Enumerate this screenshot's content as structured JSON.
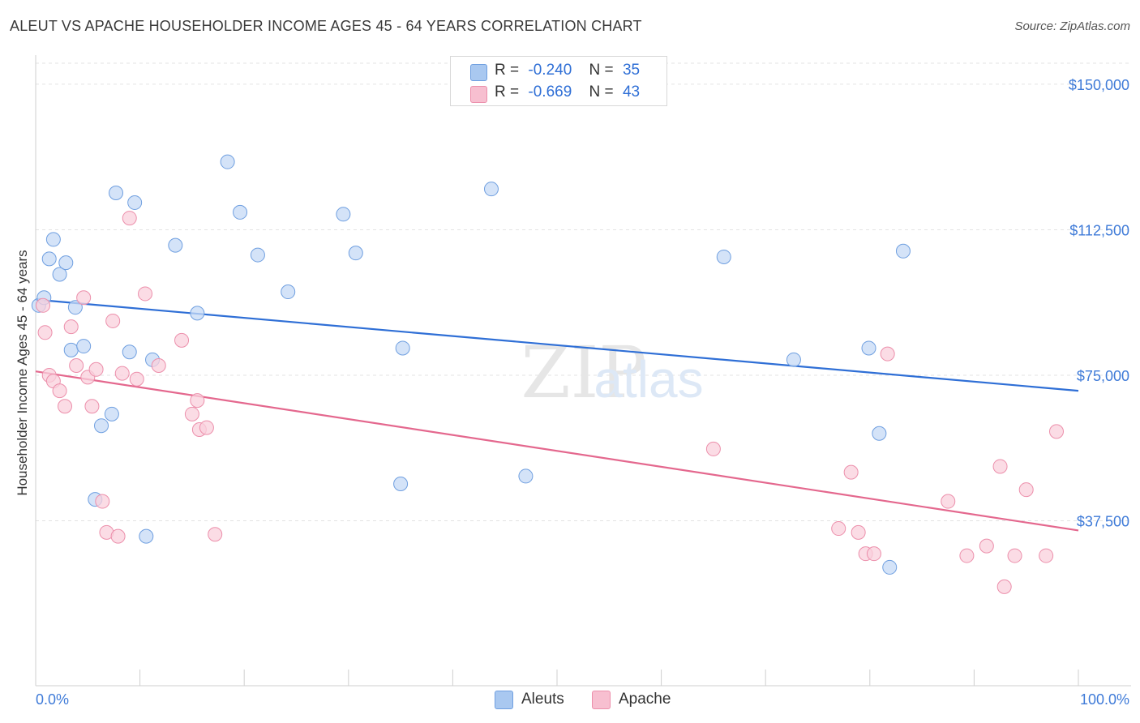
{
  "title": "ALEUT VS APACHE HOUSEHOLDER INCOME AGES 45 - 64 YEARS CORRELATION CHART",
  "source": "Source: ZipAtlas.com",
  "watermark": {
    "zip": "ZIP",
    "atlas": "atlas"
  },
  "legend": {
    "rows": [
      {
        "r_label": "R =",
        "r_value": "-0.240",
        "n_label": "N =",
        "n_value": "35",
        "color": "#a9c8f0",
        "stroke": "#6f9fe0"
      },
      {
        "r_label": "R =",
        "r_value": "-0.669",
        "n_label": "N =",
        "n_value": "43",
        "color": "#f7bfd0",
        "stroke": "#ec8fab"
      }
    ]
  },
  "bottom_legend": [
    {
      "label": "Aleuts",
      "color": "#a9c8f0",
      "stroke": "#6f9fe0"
    },
    {
      "label": "Apache",
      "color": "#f7bfd0",
      "stroke": "#ec8fab"
    }
  ],
  "chart_data": {
    "type": "scatter",
    "title": "ALEUT VS APACHE HOUSEHOLDER INCOME AGES 45 - 64 YEARS CORRELATION CHART",
    "xlabel": "",
    "ylabel": "Householder Income Ages 45 - 64 years",
    "xlim": [
      0,
      100
    ],
    "ylim": [
      0,
      155000
    ],
    "x_tick_labels": {
      "min": "0.0%",
      "max": "100.0%"
    },
    "y_ticks": [
      {
        "value": 37500,
        "label": "$37,500"
      },
      {
        "value": 75000,
        "label": "$75,000"
      },
      {
        "value": 112500,
        "label": "$112,500"
      },
      {
        "value": 150000,
        "label": "$150,000"
      }
    ],
    "grid": true,
    "series": [
      {
        "name": "Aleuts",
        "color": "#6f9fe0",
        "fill": "#c5daf5",
        "line_color": "#2f6fd6",
        "trend": {
          "x": [
            0,
            100
          ],
          "y": [
            94500,
            71000
          ]
        },
        "points": [
          [
            0.3,
            93000
          ],
          [
            0.8,
            95000
          ],
          [
            1.3,
            105000
          ],
          [
            1.7,
            110000
          ],
          [
            2.3,
            101000
          ],
          [
            2.9,
            104000
          ],
          [
            3.4,
            81500
          ],
          [
            3.8,
            92500
          ],
          [
            4.6,
            82500
          ],
          [
            5.7,
            43000
          ],
          [
            6.3,
            62000
          ],
          [
            7.3,
            65000
          ],
          [
            7.7,
            122000
          ],
          [
            9.0,
            81000
          ],
          [
            9.5,
            119500
          ],
          [
            10.6,
            33500
          ],
          [
            11.2,
            79000
          ],
          [
            13.4,
            108500
          ],
          [
            15.5,
            91000
          ],
          [
            18.4,
            130000
          ],
          [
            19.6,
            117000
          ],
          [
            21.3,
            106000
          ],
          [
            24.2,
            96500
          ],
          [
            29.5,
            116500
          ],
          [
            30.7,
            106500
          ],
          [
            35.0,
            47000
          ],
          [
            35.2,
            82000
          ],
          [
            43.7,
            123000
          ],
          [
            47.0,
            49000
          ],
          [
            66.0,
            105500
          ],
          [
            72.7,
            79000
          ],
          [
            79.9,
            82000
          ],
          [
            80.9,
            60000
          ],
          [
            81.9,
            25500
          ],
          [
            83.2,
            107000
          ]
        ]
      },
      {
        "name": "Apache",
        "color": "#ec8fab",
        "fill": "#f9d0dc",
        "line_color": "#e4688e",
        "trend": {
          "x": [
            0,
            100
          ],
          "y": [
            76000,
            35000
          ]
        },
        "points": [
          [
            0.7,
            93000
          ],
          [
            0.9,
            86000
          ],
          [
            1.3,
            75000
          ],
          [
            1.7,
            73500
          ],
          [
            2.3,
            71000
          ],
          [
            2.8,
            67000
          ],
          [
            3.4,
            87500
          ],
          [
            3.9,
            77500
          ],
          [
            4.6,
            95000
          ],
          [
            5.0,
            74500
          ],
          [
            5.4,
            67000
          ],
          [
            5.8,
            76500
          ],
          [
            6.4,
            42500
          ],
          [
            6.8,
            34500
          ],
          [
            7.4,
            89000
          ],
          [
            7.9,
            33500
          ],
          [
            8.3,
            75500
          ],
          [
            9.0,
            115500
          ],
          [
            9.7,
            74000
          ],
          [
            10.5,
            96000
          ],
          [
            11.8,
            77500
          ],
          [
            14.0,
            84000
          ],
          [
            15.0,
            65000
          ],
          [
            15.5,
            68500
          ],
          [
            15.7,
            61000
          ],
          [
            16.4,
            61500
          ],
          [
            17.2,
            34000
          ],
          [
            65.0,
            56000
          ],
          [
            77.0,
            35500
          ],
          [
            78.2,
            50000
          ],
          [
            78.9,
            34500
          ],
          [
            79.6,
            29000
          ],
          [
            80.4,
            29000
          ],
          [
            81.7,
            80500
          ],
          [
            87.5,
            42500
          ],
          [
            89.3,
            28500
          ],
          [
            91.2,
            31000
          ],
          [
            92.5,
            51500
          ],
          [
            92.9,
            20500
          ],
          [
            93.9,
            28500
          ],
          [
            95.0,
            45500
          ],
          [
            96.9,
            28500
          ],
          [
            97.9,
            60500
          ]
        ]
      }
    ]
  }
}
